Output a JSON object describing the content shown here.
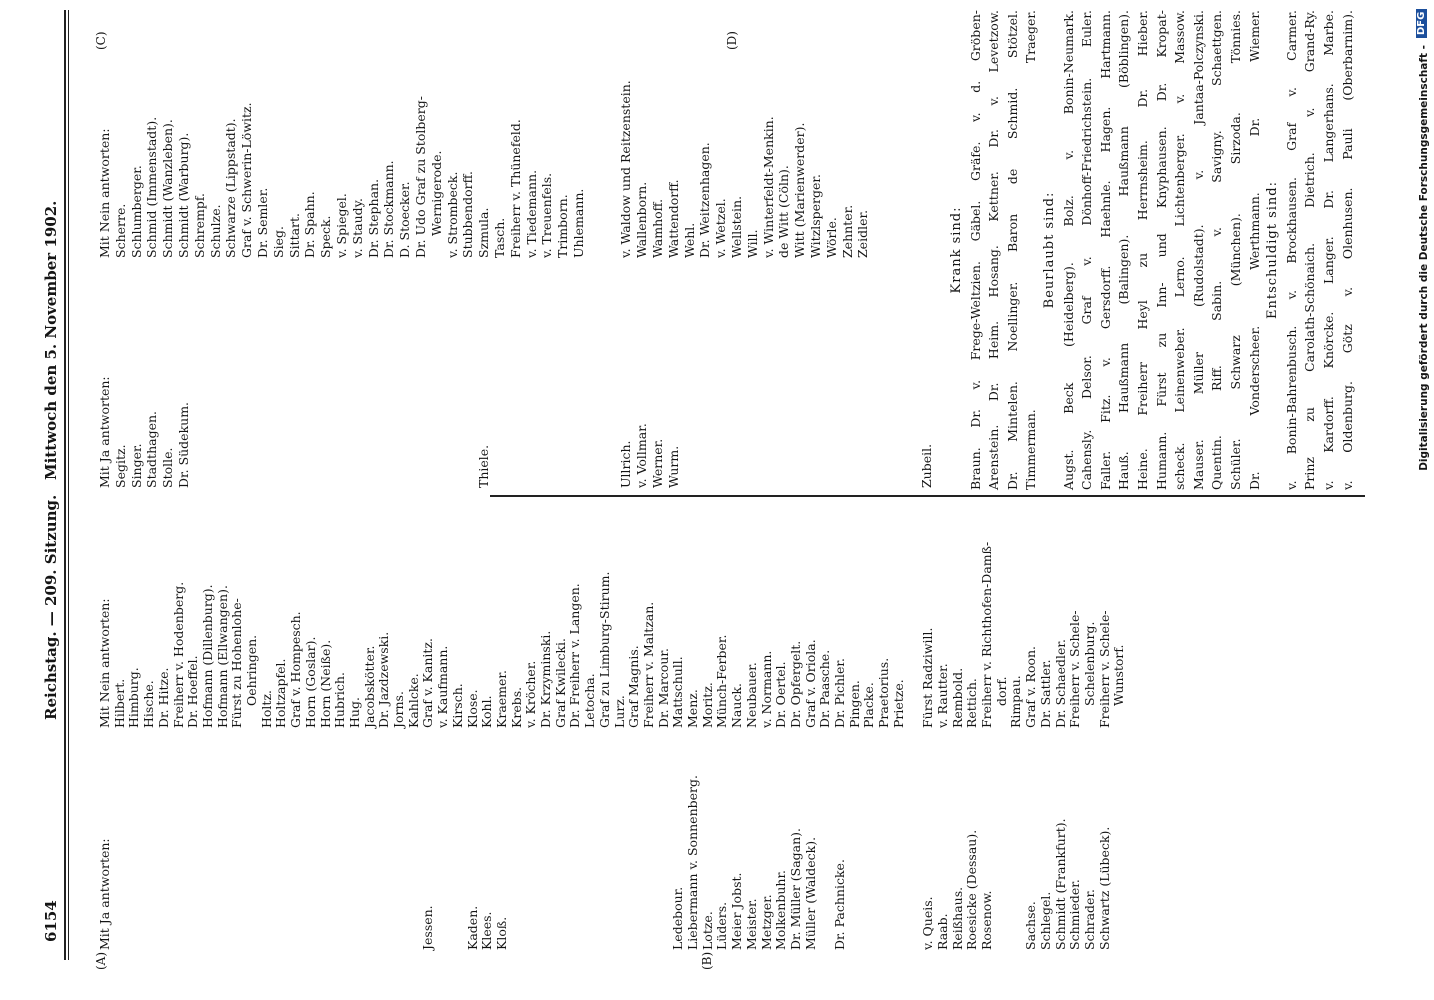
{
  "header": {
    "page_number": "6154",
    "session": "Reichstag. — 209. Sitzung.",
    "date": "Mittwoch den 5. November 1902."
  },
  "margin_marks": [
    "(A)",
    "(B)",
    "(C)",
    "(D)"
  ],
  "left_column": {
    "yes": {
      "heading": "Mit Ja antworten:",
      "blocks": [
        [
          "Jessen."
        ],
        [
          "Kaden.",
          "Klees.",
          "Kloß."
        ],
        [
          "Ledebour.",
          "Liebermann v. Sonnenberg.",
          "Lotze.",
          "Lüders.",
          "Meier Jobst.",
          "Meister.",
          "Metzger.",
          "Molkenbuhr.",
          "Dr. Müller (Sagan).",
          "Müller (Waldeck)."
        ],
        [
          "Dr. Pachnicke."
        ],
        [
          "v. Queis.",
          "Raab.",
          "Reißhaus.",
          "Roesicke (Dessau).",
          "Rosenow."
        ],
        [
          "Sachse.",
          "Schlegel.",
          "Schmidt (Frankfurt).",
          "Schmieder.",
          "Schrader.",
          "Schwartz (Lübeck)."
        ]
      ]
    },
    "no": {
      "heading": "Mit Nein antworten:",
      "blocks": [
        [
          "Hilbert.",
          "Himburg.",
          "Hische.",
          "Dr. Hitze.",
          "Freiherr v. Hodenberg.",
          "Dr. Hoeffel.",
          "Hofmann (Dillenburg).",
          "Hofmann (Ellwangen).",
          "Fürst zu Hohenlohe-",
          "Oehringen.",
          "Holtz.",
          "Holtzapfel.",
          "Graf v. Hompesch.",
          "Horn (Goslar).",
          "Horn (Neiße).",
          "Hubrich.",
          "Hug.",
          "Jacobskötter.",
          "Dr. Jazdzewski.",
          "Jorns.",
          "Kahlcke.",
          "Graf v. Kanitz.",
          "v. Kaufmann.",
          "Kirsch.",
          "Klose.",
          "Kohl.",
          "Kraemer.",
          "Krebs.",
          "v. Kröcher.",
          "Dr. Krzyminski.",
          "Graf Kwilecki.",
          "Dr. Freiherr v. Langen.",
          "Letocha.",
          "Graf zu Limburg-Stirum.",
          "Lurz.",
          "Graf Magnis.",
          "Freiherr v. Maltzan.",
          "Dr. Marcour.",
          "Mattschull.",
          "Menz.",
          "Moritz.",
          "Münch-Ferber.",
          "Nauck.",
          "Neubauer.",
          "v. Normann.",
          "Dr. Oertel.",
          "Dr. Opfergelt.",
          "Graf v. Oriola.",
          "Dr. Paasche.",
          "Dr. Pichler.",
          "Pingen.",
          "Placke.",
          "Praetorius.",
          "Prietze."
        ],
        [
          "Fürst Radziwill.",
          "v. Rautter.",
          "Rembold.",
          "Rettich.",
          "Freiherr v. Richthofen-Damß-",
          "dorf.",
          "Rimpau.",
          "Graf v. Roon.",
          "Dr. Sattler.",
          "Dr. Schaedler.",
          "Freiherr v. Schele-",
          "Schelenburg.",
          "Freiherr v. Schele-",
          "Wunstorf."
        ]
      ]
    }
  },
  "right_column": {
    "yes": {
      "heading": "Mit Ja antworten:",
      "blocks": [
        [
          "Segitz.",
          "Singer.",
          "Stadthagen.",
          "Stolle.",
          "Dr. Südekum."
        ],
        [
          "Thiele."
        ],
        [
          "Ullrich.",
          "v. Vollmar.",
          "Werner.",
          "Wurm."
        ],
        [
          "Zubeil."
        ]
      ]
    },
    "no": {
      "heading": "Mit Nein antworten:",
      "blocks": [
        [
          "Scherre.",
          "Schlumberger.",
          "Schmid (Immenstadt).",
          "Schmidt (Wanzleben).",
          "Schmidt (Warburg).",
          "Schrempf.",
          "Schulze.",
          "Schwarze (Lippstadt).",
          "Graf v. Schwerin-Löwitz.",
          "Dr. Semler.",
          "Sieg.",
          "Sittart.",
          "Dr. Spahn.",
          "Speck.",
          "v. Spiegel.",
          "v. Staudy.",
          "Dr. Stephan.",
          "Dr. Stockmann.",
          "D. Stoecker.",
          "Dr. Udo Graf zu Stolberg-",
          "Wernigerode.",
          "v. Strombeck.",
          "Stubbendorff.",
          "Szmula.",
          "Tasch.",
          "Freiherr v. Thünefeld.",
          "v. Tiedemann.",
          "v. Treuenfels.",
          "Trimborn.",
          "Uhlemann."
        ],
        [
          "v. Waldow und Reitzenstein.",
          "Wallenborn.",
          "Wamhoff.",
          "Wattendorff.",
          "Wehl.",
          "Dr. Weitzenhagen.",
          "v. Wetzel.",
          "Wellstein.",
          "Will.",
          "v. Winterfeldt-Menkin.",
          "de Witt (Cöln).",
          "Witt (Marienwerder).",
          "Witzlsperger.",
          "Wörle.",
          "Zehnter.",
          "Zeidler."
        ]
      ]
    }
  },
  "absent": [
    {
      "heading": "Krank sind:",
      "lines": [
        "Braun. Dr. v. Frege-Weltzien. Gäbel. Gräfe. v. d. Gröben-",
        "Arenstein. Dr. Heim. Hosang. Kettner. Dr. v. Levetzow.",
        "Dr. Mintelen. Noellinger. Baron de Schmid. Stötzel.",
        "Timmerman. Traeger."
      ]
    },
    {
      "heading": "Beurlaubt sind:",
      "lines": [
        "Augst. Beck (Heidelberg). Bolz. v. Bonin-Neumark.",
        "Cahensly. Delsor. Graf v. Dönhoff-Friedrichstein. Euler.",
        "Faller. Fitz. v. Gersdorff. Haehnle. Hagen. Hartmann.",
        "Hauß. Haußmann (Balingen). Haußmann (Böblingen).",
        "Heine. Freiherr Heyl zu Herrnsheim. Dr. Hieber.",
        "Humann. Fürst zu Inn- und Knyphausen. Dr. Kropat-",
        "scheck. Leinenweber. Lerno. Lichtenberger. v. Massow.",
        "Mauser. Müller (Rudolstadt). v. Jantaa-Polczynski.",
        "Quentin. Riff. Sabin. v. Savigny. Schaettgen.",
        "Schüler. Schwarz (München). Sirzoda. Tönnies.",
        "Dr. Vonderscheer. Werthmann. Dr. Wiemer."
      ]
    },
    {
      "heading": "Entschuldigt sind:",
      "lines": [
        "v. Bonin-Bahrenbusch. v. Brockhausen. Graf v. Carmer.",
        "Prinz zu Carolath-Schönaich. Dietrich. v. Grand-Ry.",
        "v. Kardorff. Knörcke. Langer. Dr. Langerhans. Marbe.",
        "v. Oldenburg. Götz v. Olenhusen. Pauli (Oberbarnim)."
      ]
    }
  ],
  "footer": {
    "credit": "Digitalisierung gefördert durch die Deutsche Forschungsgemeinschaft -",
    "logo": "DFG"
  }
}
